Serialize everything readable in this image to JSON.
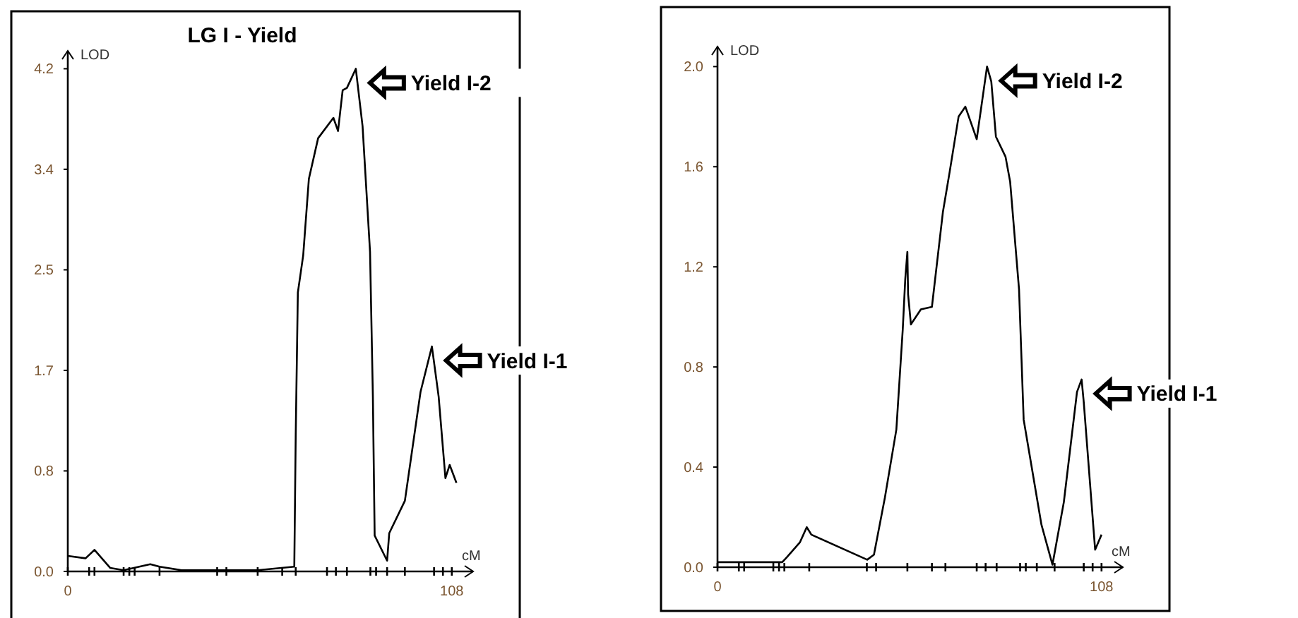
{
  "chart_data": [
    {
      "type": "line",
      "title": "LG I - Yield",
      "xlabel": "cM",
      "ylabel": "LOD",
      "xlim": [
        0,
        114
      ],
      "ylim": [
        0,
        4.35
      ],
      "xticks": [
        {
          "value": 0,
          "label": "0"
        },
        {
          "value": 6,
          "label": null
        },
        {
          "value": 7.5,
          "label": null
        },
        {
          "value": 15.7,
          "label": null
        },
        {
          "value": 17.3,
          "label": null
        },
        {
          "value": 18.8,
          "label": null
        },
        {
          "value": 25.8,
          "label": null
        },
        {
          "value": 42,
          "label": null
        },
        {
          "value": 44.6,
          "label": null
        },
        {
          "value": 53.4,
          "label": null
        },
        {
          "value": 60.3,
          "label": null
        },
        {
          "value": 64.1,
          "label": null
        },
        {
          "value": 72.9,
          "label": null
        },
        {
          "value": 75.4,
          "label": null
        },
        {
          "value": 78.5,
          "label": null
        },
        {
          "value": 85.1,
          "label": null
        },
        {
          "value": 86.7,
          "label": null
        },
        {
          "value": 89.8,
          "label": null
        },
        {
          "value": 94.8,
          "label": null
        },
        {
          "value": 103,
          "label": null
        },
        {
          "value": 105.5,
          "label": null
        },
        {
          "value": 108,
          "label": "108"
        }
      ],
      "yticks": [
        {
          "value": 0,
          "label": "0.0"
        },
        {
          "value": 0.84,
          "label": "0.8"
        },
        {
          "value": 1.68,
          "label": "1.7"
        },
        {
          "value": 2.52,
          "label": "2.5"
        },
        {
          "value": 3.36,
          "label": "3.4"
        },
        {
          "value": 4.2,
          "label": "4.2"
        }
      ],
      "series": [
        {
          "color": "#000000",
          "x": [
            0,
            5,
            7.5,
            11.9,
            15.7,
            23.2,
            25.8,
            32,
            42,
            53.4,
            63.7,
            64.1,
            64.7,
            66.2,
            67.8,
            70.4,
            74.7,
            76,
            77.3,
            78.5,
            81,
            82.9,
            85,
            85.8,
            86.3,
            89.8,
            90.4,
            94.8,
            99.2,
            102.4,
            104.3,
            106.2,
            107.4,
            109.3
          ],
          "values": [
            0.13,
            0.11,
            0.18,
            0.03,
            0.01,
            0.06,
            0.04,
            0.01,
            0.01,
            0.01,
            0.04,
            1.14,
            2.33,
            2.64,
            3.28,
            3.62,
            3.79,
            3.68,
            4.02,
            4.04,
            4.2,
            3.72,
            2.67,
            1.46,
            0.3,
            0.09,
            0.32,
            0.59,
            1.5,
            1.88,
            1.46,
            0.78,
            0.89,
            0.74
          ]
        }
      ],
      "annotations": [
        {
          "text": "Yield I-2",
          "x": 81,
          "y": 4.2
        },
        {
          "text": "Yield I-1",
          "x": 102.4,
          "y": 1.88
        }
      ]
    },
    {
      "type": "line",
      "xlabel": "cM",
      "ylabel": "LOD",
      "xlim": [
        0,
        114
      ],
      "ylim": [
        0,
        2.08
      ],
      "xticks": [
        {
          "value": 0,
          "label": "0"
        },
        {
          "value": 6,
          "label": null
        },
        {
          "value": 7.5,
          "label": null
        },
        {
          "value": 15.7,
          "label": null
        },
        {
          "value": 17.3,
          "label": null
        },
        {
          "value": 18.8,
          "label": null
        },
        {
          "value": 25.8,
          "label": null
        },
        {
          "value": 42,
          "label": null
        },
        {
          "value": 44.6,
          "label": null
        },
        {
          "value": 53.4,
          "label": null
        },
        {
          "value": 60.3,
          "label": null
        },
        {
          "value": 64.1,
          "label": null
        },
        {
          "value": 72.9,
          "label": null
        },
        {
          "value": 75.4,
          "label": null
        },
        {
          "value": 78.5,
          "label": null
        },
        {
          "value": 85.1,
          "label": null
        },
        {
          "value": 86.7,
          "label": null
        },
        {
          "value": 89.8,
          "label": null
        },
        {
          "value": 94.8,
          "label": null
        },
        {
          "value": 103,
          "label": null
        },
        {
          "value": 105.5,
          "label": null
        },
        {
          "value": 108,
          "label": "108"
        }
      ],
      "yticks": [
        {
          "value": 0,
          "label": "0.0"
        },
        {
          "value": 0.4,
          "label": "0.4"
        },
        {
          "value": 0.8,
          "label": "0.8"
        },
        {
          "value": 1.2,
          "label": "1.2"
        },
        {
          "value": 1.6,
          "label": "1.6"
        },
        {
          "value": 2.0,
          "label": "2.0"
        }
      ],
      "series": [
        {
          "color": "#000000",
          "x": [
            0,
            18.2,
            19.5,
            23.2,
            25.1,
            26.4,
            42.1,
            44,
            47.1,
            50.3,
            52.1,
            52.8,
            53.4,
            53.6,
            54.4,
            57.2,
            60.3,
            63.4,
            65.3,
            67.8,
            69.7,
            72.9,
            75.8,
            77,
            78.3,
            81,
            82.3,
            84.8,
            86.1,
            91.1,
            94.2,
            97.4,
            101.1,
            102.4,
            103,
            106.2,
            108
          ],
          "values": [
            0.02,
            0.02,
            0.04,
            0.1,
            0.16,
            0.13,
            0.03,
            0.05,
            0.28,
            0.55,
            0.95,
            1.15,
            1.26,
            1.09,
            0.97,
            1.03,
            1.04,
            1.42,
            1.58,
            1.8,
            1.84,
            1.71,
            2.0,
            1.94,
            1.72,
            1.64,
            1.54,
            1.11,
            0.59,
            0.17,
            0.01,
            0.26,
            0.7,
            0.75,
            0.66,
            0.07,
            0.13
          ]
        }
      ],
      "annotations": [
        {
          "text": "Yield I-2",
          "x": 75.8,
          "y": 2.0
        },
        {
          "text": "Yield I-1",
          "x": 102.4,
          "y": 0.75
        }
      ]
    }
  ]
}
